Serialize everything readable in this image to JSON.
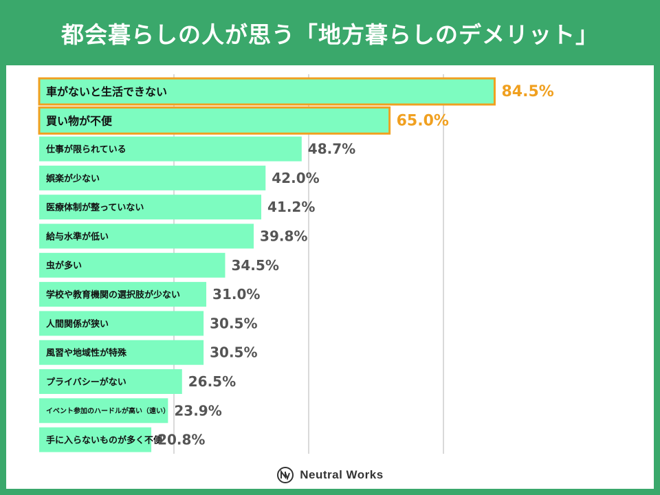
{
  "page_title": "都会暮らしの人が思う「地方暮らしのデメリット」",
  "brand": {
    "name": "Neutral Works",
    "logo_icon": "neutral-works-logo-icon"
  },
  "colors": {
    "background": "#3aa86b",
    "bar": "#7dfcc0",
    "highlight_border": "#f0a020",
    "highlight_value": "#f0a020",
    "value_text": "#555555",
    "grid": "#d9d9d9"
  },
  "chart_data": {
    "type": "bar",
    "orientation": "horizontal",
    "title": "都会暮らしの人が思う「地方暮らしのデメリット」",
    "xlabel": "",
    "ylabel": "",
    "xlim": [
      0,
      100
    ],
    "unit": "%",
    "grid": true,
    "categories": [
      "車がないと生活できない",
      "買い物が不便",
      "仕事が限られている",
      "娯楽が少ない",
      "医療体制が整っていない",
      "給与水準が低い",
      "虫が多い",
      "学校や教育機関の選択肢が少ない",
      "人間関係が狭い",
      "風習や地域性が特殊",
      "プライバシーがない",
      "イベント参加のハードルが高い（遠い）",
      "手に入らないものが多く不便"
    ],
    "values": [
      84.5,
      65.0,
      48.7,
      42.0,
      41.2,
      39.8,
      34.5,
      31.0,
      30.5,
      30.5,
      26.5,
      23.9,
      20.8
    ],
    "value_labels": [
      "84.5%",
      "65.0%",
      "48.7%",
      "42.0%",
      "41.2%",
      "39.8%",
      "34.5%",
      "31.0%",
      "30.5%",
      "30.5%",
      "26.5%",
      "23.9%",
      "20.8%"
    ],
    "highlighted": [
      true,
      true,
      false,
      false,
      false,
      false,
      false,
      false,
      false,
      false,
      false,
      false,
      false
    ]
  }
}
